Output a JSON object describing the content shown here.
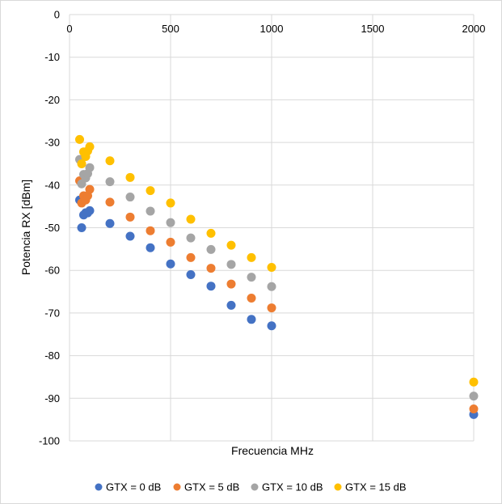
{
  "chart_data": {
    "type": "scatter",
    "title": "",
    "xlabel": "Frecuencia MHz",
    "ylabel": "Potencia RX [dBm]",
    "xlim": [
      0,
      2000
    ],
    "ylim": [
      -100,
      0
    ],
    "x_ticks": [
      0,
      500,
      1000,
      1500,
      2000
    ],
    "y_ticks": [
      0,
      -10,
      -20,
      -30,
      -40,
      -50,
      -60,
      -70,
      -80,
      -90,
      -100
    ],
    "x_axis_position": "top",
    "grid": true,
    "legend_position": "bottom",
    "x": [
      50,
      60,
      70,
      80,
      90,
      100,
      200,
      300,
      400,
      500,
      600,
      700,
      800,
      900,
      1000,
      2000
    ],
    "series": [
      {
        "name": "GTX = 0 dB",
        "color": "#4472C4",
        "values": [
          -43.5,
          -50.0,
          -47.0,
          -46.5,
          -46.5,
          -46.0,
          -49.0,
          -52.0,
          -54.7,
          -58.5,
          -61.0,
          -63.7,
          -68.2,
          -71.5,
          -73.0,
          -93.8
        ]
      },
      {
        "name": "GTX = 5 dB",
        "color": "#ED7D31",
        "values": [
          -39.0,
          -44.2,
          -42.5,
          -43.5,
          -42.5,
          -41.0,
          -44.0,
          -47.5,
          -50.7,
          -53.4,
          -57.0,
          -59.5,
          -63.2,
          -66.5,
          -68.8,
          -92.5
        ]
      },
      {
        "name": "GTX = 10 dB",
        "color": "#A5A5A5",
        "values": [
          -34.0,
          -39.7,
          -37.5,
          -38.3,
          -37.3,
          -35.9,
          -39.2,
          -42.8,
          -46.1,
          -48.8,
          -52.4,
          -55.1,
          -58.6,
          -61.6,
          -63.8,
          -89.5
        ]
      },
      {
        "name": "GTX = 15 dB",
        "color": "#FFC000",
        "values": [
          -29.3,
          -35.0,
          -32.2,
          -33.3,
          -32.0,
          -31.0,
          -34.3,
          -38.2,
          -41.3,
          -44.2,
          -48.0,
          -51.3,
          -54.1,
          -57.0,
          -59.3,
          -86.2
        ]
      }
    ]
  }
}
